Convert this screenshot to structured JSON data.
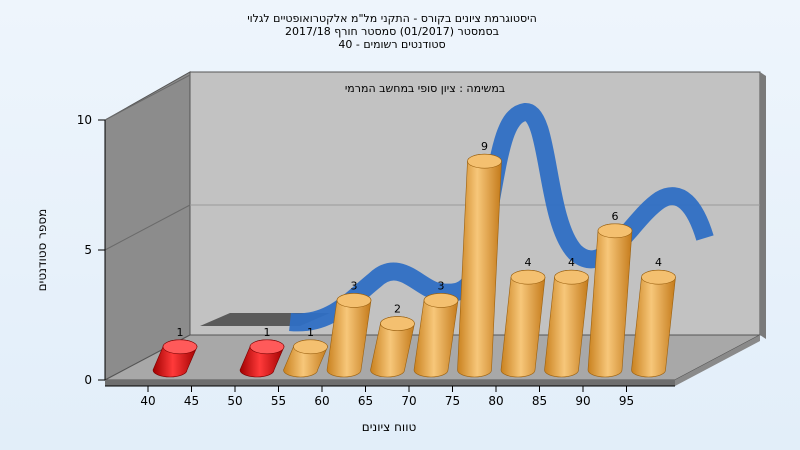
{
  "chart_data": {
    "type": "bar",
    "title_lines": [
      "היסטוגרמת ציונים בקורס - התקני מל\"מ אלקטרואופטיים לגלוי",
      "בסמסטר  (01/2017)  סמסטר חורף 2017/18",
      "סטודנטים רשומים - 40"
    ],
    "subtitle": "במשימה : ציון סופי במחשב המרמי",
    "xlabel": "טווח ציונים",
    "ylabel": "מספר סטודנטים",
    "ylim": [
      0,
      10
    ],
    "y_ticks": [
      "0",
      "5",
      "10"
    ],
    "x_ticks": [
      "40",
      "45",
      "50",
      "55",
      "60",
      "65",
      "70",
      "75",
      "80",
      "85",
      "90",
      "95"
    ],
    "bars": [
      {
        "category": "40",
        "value": 1,
        "label": "1",
        "color": "#e01010"
      },
      {
        "category": "50",
        "value": 1,
        "label": "1",
        "color": "#e01010"
      },
      {
        "category": "55",
        "value": 1,
        "label": "1",
        "color": "#e8a040"
      },
      {
        "category": "60",
        "value": 3,
        "label": "3",
        "color": "#e8a040"
      },
      {
        "category": "65",
        "value": 2,
        "label": "2",
        "color": "#e8a040"
      },
      {
        "category": "70",
        "value": 3,
        "label": "3",
        "color": "#e8a040"
      },
      {
        "category": "75",
        "value": 9,
        "label": "9",
        "color": "#e8a040"
      },
      {
        "category": "80",
        "value": 4,
        "label": "4",
        "color": "#e8a040"
      },
      {
        "category": "85",
        "value": 4,
        "label": "4",
        "color": "#e8a040"
      },
      {
        "category": "90",
        "value": 6,
        "label": "6",
        "color": "#e8a040"
      },
      {
        "category": "95",
        "value": 4,
        "label": "4",
        "color": "#e8a040"
      }
    ],
    "curve_color": "#2f6fc4",
    "grid": true
  }
}
